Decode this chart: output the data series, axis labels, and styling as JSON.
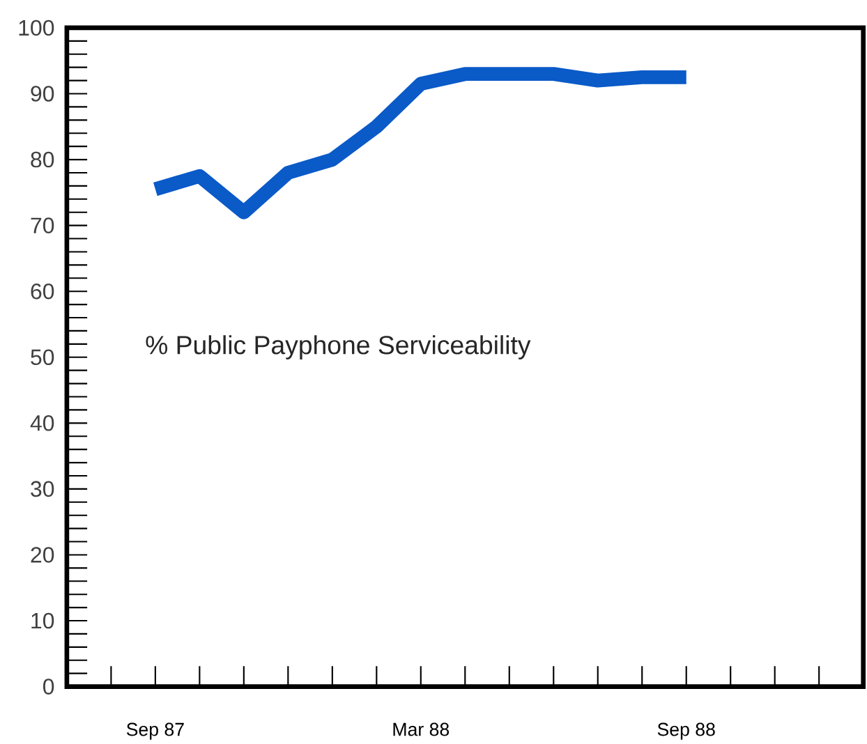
{
  "chart_data": {
    "type": "line",
    "annotations": [
      "% Public Payphone Serviceability"
    ],
    "series": [
      {
        "color": "#0a5ac8",
        "x": [
          "1987-09",
          "1987-10",
          "1987-11",
          "1987-12",
          "1988-01",
          "1988-02",
          "1988-03",
          "1988-04",
          "1988-05",
          "1988-06",
          "1988-07",
          "1988-08",
          "1988-09"
        ],
        "values": [
          75.5,
          77.5,
          72,
          78,
          80,
          85,
          91.5,
          93,
          93,
          93,
          92,
          92.5,
          92.5
        ]
      }
    ],
    "xlim": [
      "1987-07",
      "1989-01"
    ],
    "xticks": [
      {
        "value": "1987-08",
        "label": null
      },
      {
        "value": "1987-09",
        "label": "Sep 87"
      },
      {
        "value": "1987-10",
        "label": null
      },
      {
        "value": "1987-11",
        "label": null
      },
      {
        "value": "1987-12",
        "label": null
      },
      {
        "value": "1988-01",
        "label": null
      },
      {
        "value": "1988-02",
        "label": null
      },
      {
        "value": "1988-03",
        "label": "Mar 88"
      },
      {
        "value": "1988-04",
        "label": null
      },
      {
        "value": "1988-05",
        "label": null
      },
      {
        "value": "1988-06",
        "label": null
      },
      {
        "value": "1988-07",
        "label": null
      },
      {
        "value": "1988-08",
        "label": null
      },
      {
        "value": "1988-09",
        "label": "Sep 88"
      },
      {
        "value": "1988-10",
        "label": null
      },
      {
        "value": "1988-11",
        "label": null
      },
      {
        "value": "1988-12",
        "label": null
      }
    ],
    "ylim": [
      0,
      100
    ],
    "yticks": [
      0,
      {
        "value": 2,
        "label": null
      },
      {
        "value": 4,
        "label": null
      },
      {
        "value": 6,
        "label": null
      },
      {
        "value": 8,
        "label": null
      },
      10,
      {
        "value": 12,
        "label": null
      },
      {
        "value": 14,
        "label": null
      },
      {
        "value": 16,
        "label": null
      },
      {
        "value": 18,
        "label": null
      },
      20,
      {
        "value": 22,
        "label": null
      },
      {
        "value": 24,
        "label": null
      },
      {
        "value": 26,
        "label": null
      },
      {
        "value": 28,
        "label": null
      },
      30,
      {
        "value": 32,
        "label": null
      },
      {
        "value": 34,
        "label": null
      },
      {
        "value": 36,
        "label": null
      },
      {
        "value": 38,
        "label": null
      },
      40,
      {
        "value": 42,
        "label": null
      },
      {
        "value": 44,
        "label": null
      },
      {
        "value": 46,
        "label": null
      },
      {
        "value": 48,
        "label": null
      },
      50,
      {
        "value": 52,
        "label": null
      },
      {
        "value": 54,
        "label": null
      },
      {
        "value": 56,
        "label": null
      },
      {
        "value": 58,
        "label": null
      },
      60,
      {
        "value": 62,
        "label": null
      },
      {
        "value": 64,
        "label": null
      },
      {
        "value": 66,
        "label": null
      },
      {
        "value": 68,
        "label": null
      },
      70,
      {
        "value": 72,
        "label": null
      },
      {
        "value": 74,
        "label": null
      },
      {
        "value": 76,
        "label": null
      },
      {
        "value": 78,
        "label": null
      },
      80,
      {
        "value": 82,
        "label": null
      },
      {
        "value": 84,
        "label": null
      },
      {
        "value": 86,
        "label": null
      },
      {
        "value": 88,
        "label": null
      },
      90,
      {
        "value": 92,
        "label": null
      },
      {
        "value": 94,
        "label": null
      },
      {
        "value": 96,
        "label": null
      },
      {
        "value": 98,
        "label": null
      },
      100
    ],
    "marker": "none",
    "line_style": "solid"
  }
}
